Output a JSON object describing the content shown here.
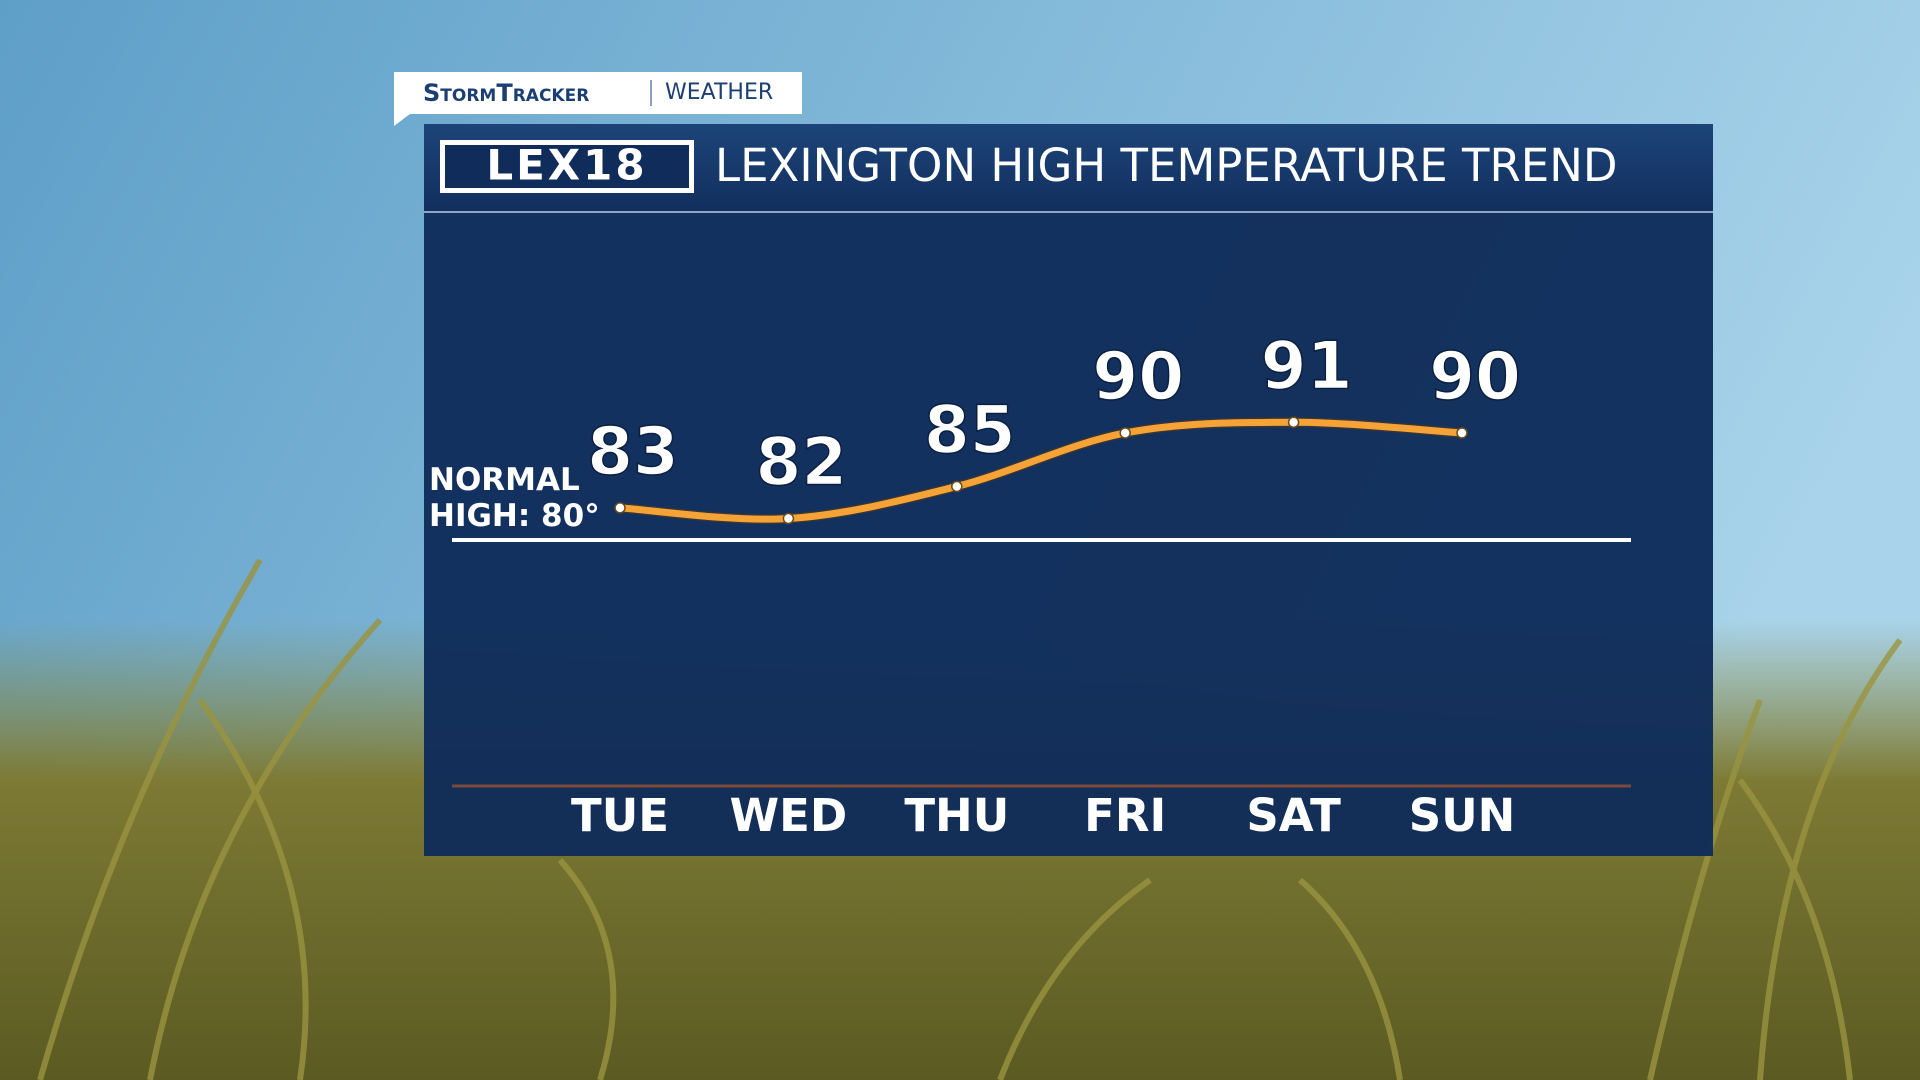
{
  "chart_data": {
    "type": "line",
    "header": "StormTracker",
    "subheader": "WEATHER",
    "logo": "LEX18",
    "title": "LEXINGTON HIGH TEMPERATURE TREND",
    "categories": [
      "TUE",
      "WED",
      "THU",
      "FRI",
      "SAT",
      "SUN"
    ],
    "values": [
      83,
      82,
      85,
      90,
      91,
      90
    ],
    "color": "#f5a336",
    "ylim": [
      57,
      110
    ],
    "reference_line": {
      "value": 80,
      "label": "NORMAL HIGH: 80°"
    }
  }
}
